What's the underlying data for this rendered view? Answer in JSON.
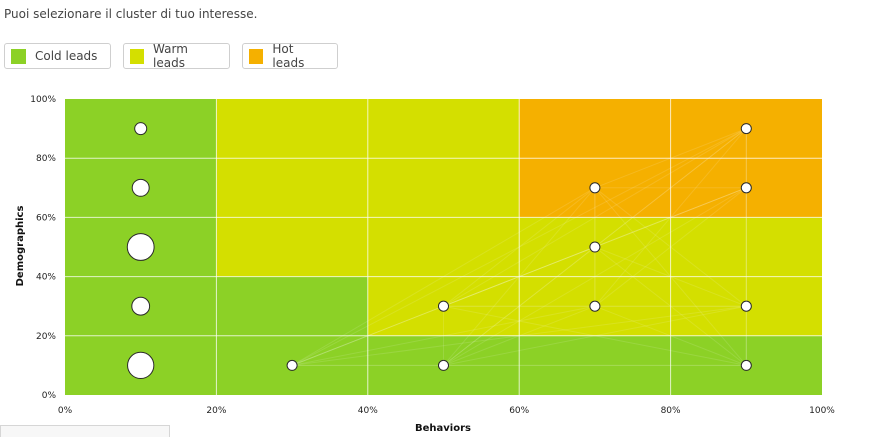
{
  "instructions": "Puoi selezionare il cluster di tuo interesse.",
  "legend": [
    {
      "label": "Cold leads",
      "color": "#8cd126"
    },
    {
      "label": "Warm leads",
      "color": "#d4df00"
    },
    {
      "label": "Hot leads",
      "color": "#f5b000"
    }
  ],
  "chart_data": {
    "type": "scatter",
    "xlabel": "Behaviors",
    "ylabel": "Demographics",
    "xlim": [
      0,
      100
    ],
    "ylim": [
      0,
      100
    ],
    "x_ticks": [
      "0%",
      "20%",
      "40%",
      "60%",
      "80%",
      "100%"
    ],
    "y_ticks": [
      "0%",
      "20%",
      "40%",
      "60%",
      "80%",
      "100%"
    ],
    "grid": true,
    "regions": [
      {
        "cluster": "Cold leads",
        "x": [
          0,
          20
        ],
        "y": [
          0,
          100
        ]
      },
      {
        "cluster": "Cold leads",
        "x": [
          20,
          40
        ],
        "y": [
          0,
          40
        ]
      },
      {
        "cluster": "Cold leads",
        "x": [
          40,
          100
        ],
        "y": [
          0,
          20
        ]
      },
      {
        "cluster": "Warm leads",
        "x": [
          20,
          60
        ],
        "y": [
          40,
          100
        ]
      },
      {
        "cluster": "Warm leads",
        "x": [
          40,
          60
        ],
        "y": [
          20,
          40
        ]
      },
      {
        "cluster": "Warm leads",
        "x": [
          60,
          100
        ],
        "y": [
          20,
          60
        ]
      },
      {
        "cluster": "Hot leads",
        "x": [
          60,
          100
        ],
        "y": [
          60,
          100
        ]
      }
    ],
    "points": [
      {
        "x": 10,
        "y": 90,
        "size": 1
      },
      {
        "x": 10,
        "y": 70,
        "size": 2
      },
      {
        "x": 10,
        "y": 50,
        "size": 5
      },
      {
        "x": 10,
        "y": 30,
        "size": 2.2
      },
      {
        "x": 10,
        "y": 10,
        "size": 4.8
      },
      {
        "x": 30,
        "y": 10,
        "size": 0.7
      },
      {
        "x": 50,
        "y": 30,
        "size": 0.7
      },
      {
        "x": 50,
        "y": 10,
        "size": 0.7
      },
      {
        "x": 70,
        "y": 70,
        "size": 0.7
      },
      {
        "x": 70,
        "y": 50,
        "size": 0.7
      },
      {
        "x": 70,
        "y": 30,
        "size": 0.7
      },
      {
        "x": 90,
        "y": 90,
        "size": 0.7
      },
      {
        "x": 90,
        "y": 70,
        "size": 0.7
      },
      {
        "x": 90,
        "y": 30,
        "size": 0.7
      },
      {
        "x": 90,
        "y": 10,
        "size": 0.7
      }
    ]
  }
}
